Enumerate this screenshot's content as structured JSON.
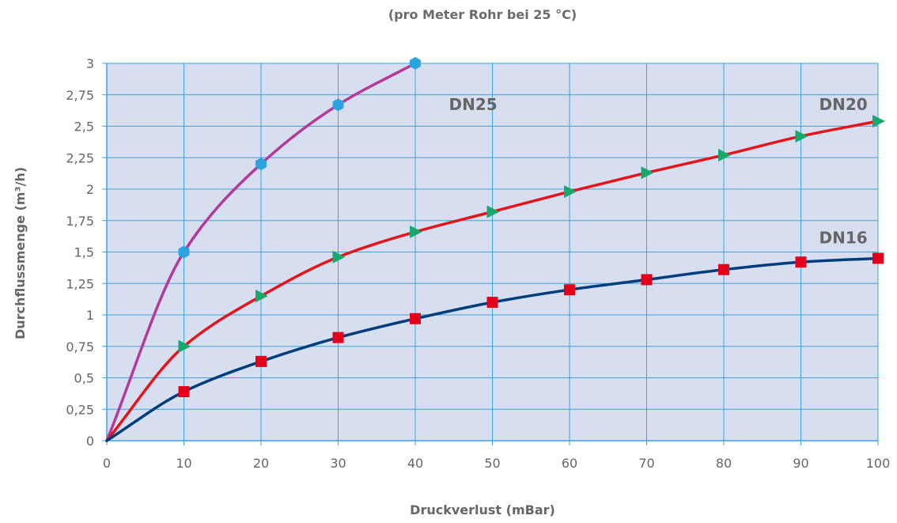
{
  "chart_data": {
    "type": "line",
    "title": "",
    "subtitle": "(pro Meter Rohr bei 25 °C)",
    "xlabel": "Druckverlust (mBar)",
    "ylabel": "Durchflussmenge (m³/h)",
    "xlim": [
      0,
      100
    ],
    "ylim": [
      0,
      3
    ],
    "x_ticks": [
      0,
      10,
      20,
      30,
      40,
      50,
      60,
      70,
      80,
      90,
      100
    ],
    "x_tick_labels": [
      "0",
      "10",
      "20",
      "30",
      "40",
      "50",
      "60",
      "70",
      "80",
      "90",
      "100"
    ],
    "y_ticks": [
      0,
      0.25,
      0.5,
      0.75,
      1,
      1.25,
      1.5,
      1.75,
      2,
      2.25,
      2.5,
      2.75,
      3
    ],
    "y_tick_labels": [
      "0",
      "0,25",
      "0,5",
      "0,75",
      "1",
      "1,25",
      "1,5",
      "1,75",
      "2",
      "2,25",
      "2,5",
      "2,75",
      "3"
    ],
    "grid": true,
    "series": [
      {
        "name": "DN25",
        "color": "#b23a9a",
        "marker": "hexagon",
        "marker_color": "#2aa3df",
        "x": [
          0,
          10,
          20,
          30,
          40
        ],
        "y": [
          0,
          1.5,
          2.2,
          2.67,
          3.0
        ]
      },
      {
        "name": "DN20",
        "color": "#e3141b",
        "marker": "triangle-right",
        "marker_color": "#18a86e",
        "x": [
          0,
          10,
          20,
          30,
          40,
          50,
          60,
          70,
          80,
          90,
          100
        ],
        "y": [
          0,
          0.75,
          1.15,
          1.46,
          1.66,
          1.82,
          1.98,
          2.13,
          2.27,
          2.42,
          2.54
        ]
      },
      {
        "name": "DN16",
        "color": "#003d7a",
        "marker": "square",
        "marker_color": "#e3001b",
        "x": [
          0,
          10,
          20,
          30,
          40,
          50,
          60,
          70,
          80,
          90,
          100
        ],
        "y": [
          0,
          0.39,
          0.63,
          0.82,
          0.97,
          1.1,
          1.2,
          1.28,
          1.36,
          1.42,
          1.45
        ]
      }
    ],
    "colors": {
      "plot_background": "#d6def0",
      "grid": "#3aa4dc",
      "axis": "#3aa4dc"
    }
  }
}
